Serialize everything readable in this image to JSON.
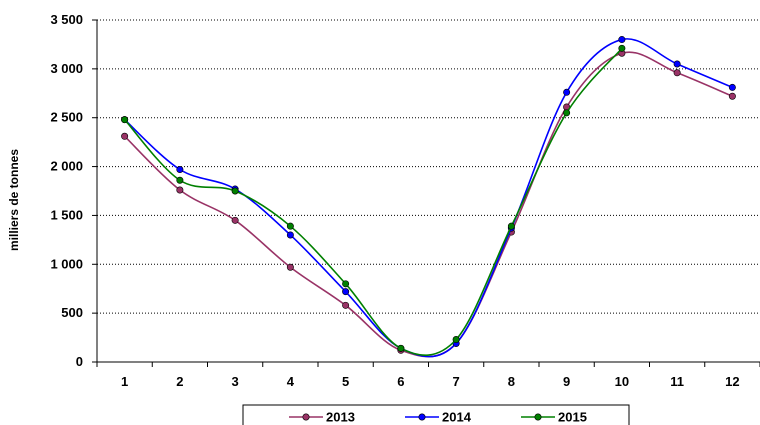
{
  "chart_data": {
    "type": "line",
    "title": "",
    "xlabel": "",
    "ylabel": "milliers de tonnes",
    "x": [
      1,
      2,
      3,
      4,
      5,
      6,
      7,
      8,
      9,
      10,
      11,
      12
    ],
    "x_tick_labels": [
      "1",
      "2",
      "3",
      "4",
      "5",
      "6",
      "7",
      "8",
      "9",
      "10",
      "11",
      "12"
    ],
    "y_tick_labels": [
      "0",
      "500",
      "1 000",
      "1 500",
      "2 000",
      "2 500",
      "3 000",
      "3 500"
    ],
    "ylim": [
      0,
      3500
    ],
    "grid": "horizontal dotted",
    "legend_position": "bottom",
    "series": [
      {
        "name": "2013",
        "color": "#993366",
        "values": [
          2310,
          1760,
          1450,
          970,
          580,
          120,
          190,
          1330,
          2610,
          3160,
          2960,
          2720
        ]
      },
      {
        "name": "2014",
        "color": "#0000ff",
        "values": [
          2480,
          1970,
          1770,
          1300,
          720,
          140,
          190,
          1370,
          2760,
          3300,
          3050,
          2810
        ]
      },
      {
        "name": "2015",
        "color": "#008000",
        "values": [
          2480,
          1860,
          1750,
          1390,
          800,
          140,
          230,
          1390,
          2550,
          3210,
          null,
          null
        ]
      }
    ]
  }
}
